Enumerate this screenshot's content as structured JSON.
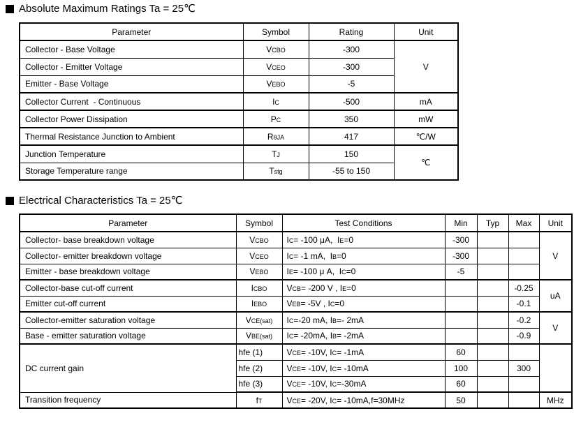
{
  "abs_max": {
    "title": "Absolute Maximum Ratings Ta = 25℃",
    "headers": [
      "Parameter",
      "Symbol",
      "Rating",
      "Unit"
    ],
    "rows": [
      {
        "parameter": "Collector - Base Voltage",
        "symbol": "V{CBO}",
        "rating": "-300",
        "unit": "V"
      },
      {
        "parameter": "Collector - Emitter Voltage",
        "symbol": "V{CEO}",
        "rating": "-300"
      },
      {
        "parameter": "Emitter - Base Voltage",
        "symbol": "V{EBO}",
        "rating": "-5"
      },
      {
        "parameter": "Collector Current  - Continuous",
        "symbol": "I{C}",
        "rating": "-500",
        "unit": "mA"
      },
      {
        "parameter": "Collector Power Dissipation",
        "symbol": "P{C}",
        "rating": "350",
        "unit": "mW"
      },
      {
        "parameter": "Thermal Resistance Junction to Ambient",
        "symbol": "R{θJA}",
        "rating": "417",
        "unit": "℃/W"
      },
      {
        "parameter": "Junction Temperature",
        "symbol": "T{J}",
        "rating": "150",
        "unit": "℃"
      },
      {
        "parameter": "Storage Temperature range",
        "symbol": "T{stg}",
        "rating": "-55 to 150"
      }
    ]
  },
  "elec": {
    "title": "Electrical Characteristics Ta = 25℃",
    "headers": [
      "Parameter",
      "Symbol",
      "Test Conditions",
      "Min",
      "Typ",
      "Max",
      "Unit"
    ],
    "rows": [
      {
        "parameter": "Collector- base breakdown voltage",
        "symbol": "V{CBO}",
        "cond": "I{C}= -100 μA,  I{E}=0",
        "min": "-300",
        "typ": "",
        "max": "",
        "unit": "V"
      },
      {
        "parameter": "Collector- emitter breakdown voltage",
        "symbol": "V{CEO}",
        "cond": "I{C}= -1 mA,  I{B}=0",
        "min": "-300",
        "typ": "",
        "max": ""
      },
      {
        "parameter": "Emitter - base breakdown voltage",
        "symbol": "V{EBO}",
        "cond": "I{E}= -100 μ A,  I{C}=0",
        "min": "-5",
        "typ": "",
        "max": ""
      },
      {
        "parameter": "Collector-base cut-off current",
        "symbol": "I{CBO}",
        "cond": "V{CB}= -200 V , I{E}=0",
        "min": "",
        "typ": "",
        "max": "-0.25",
        "unit": "uA"
      },
      {
        "parameter": "Emitter cut-off current",
        "symbol": "I{EBO}",
        "cond": "V{EB}= -5V , I{C}=0",
        "min": "",
        "typ": "",
        "max": "-0.1"
      },
      {
        "parameter": "Collector-emitter saturation voltage",
        "symbol": "V{CE(sat)}",
        "cond": "I{C}=-20 mA, I{B}=- 2mA",
        "min": "",
        "typ": "",
        "max": "-0.2",
        "unit": "V"
      },
      {
        "parameter": "Base - emitter saturation voltage",
        "symbol": "V{BE(sat)}",
        "cond": "I{C}= -20mA, I{B}= -2mA",
        "min": "",
        "typ": "",
        "max": "-0.9"
      },
      {
        "parameter": "DC current gain",
        "symbol": "hfe (1)",
        "cond": "V{CE}= -10V, I{C}= -1mA",
        "min": "60",
        "typ": "",
        "max": "",
        "unit": ""
      },
      {
        "symbol": "hfe (2)",
        "cond": "V{CE}= -10V, I{C}= -10mA",
        "min": "100",
        "typ": "",
        "max": "300"
      },
      {
        "symbol": "hfe (3)",
        "cond": "V{CE}= -10V, I{C}=-30mA",
        "min": "60",
        "typ": "",
        "max": ""
      },
      {
        "parameter": "Transition frequency",
        "symbol": "f{T}",
        "cond": "V{CE}= -20V, I{C}= -10mA,f=30MHz",
        "min": "50",
        "typ": "",
        "max": "",
        "unit": "MHz"
      }
    ]
  }
}
